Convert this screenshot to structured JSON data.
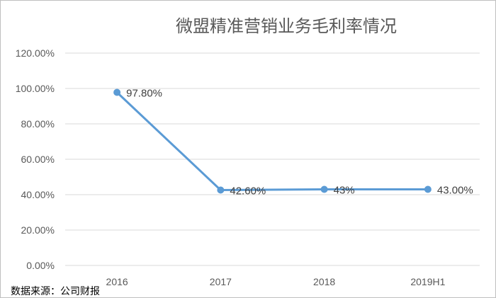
{
  "chart_data": {
    "type": "line",
    "title": "微盟精准营销业务毛利率情况",
    "categories": [
      "2016",
      "2017",
      "2018",
      "2019H1"
    ],
    "series": [
      {
        "values": [
          97.8,
          42.6,
          43.0,
          43.0
        ],
        "labels": [
          "97.80%",
          "42.60%",
          "43%",
          "43.00%"
        ]
      }
    ],
    "y_ticks": [
      "0.00%",
      "20.00%",
      "40.00%",
      "60.00%",
      "80.00%",
      "100.00%",
      "120.00%"
    ],
    "ylim": [
      0,
      120
    ],
    "ytick_step": 20,
    "grid": true,
    "xlabel": "",
    "ylabel": "",
    "line_color": "#5b9bd5",
    "grid_color": "#d9d9d9"
  },
  "footer": {
    "source": "数据来源：公司财报"
  }
}
